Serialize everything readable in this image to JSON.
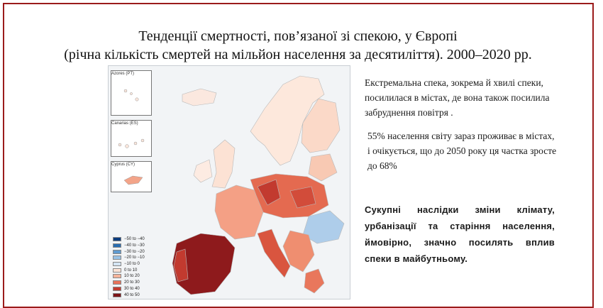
{
  "slide": {
    "title_line1": "Тенденції смертності, пов’язаної зі спекою, у Європі",
    "title_line2": "(річна кількість смертей на мільйон населення  за десятиліття). 2000–2020 рр.",
    "paragraph1": "Екстремальна спека, зокрема й хвилі спеки, посилилася в містах, де вона також посилила забруднення повітря .",
    "paragraph2": " 55% населення світу зараз проживає в містах, і очікується, що до 2050 року ця частка зросте до 68%",
    "paragraph3": "Сукупні наслідки зміни клімату, урбанізації та старіння населення, ймовірно, значно посилять вплив спеки в майбутньому."
  },
  "map": {
    "insets": [
      "Azores (PT)",
      "Canarias (ES)",
      "Cyprus (CY)"
    ],
    "legend": [
      {
        "label": "−50 to −40",
        "color": "#0b3c7d"
      },
      {
        "label": "−40 to −30",
        "color": "#2a6db0"
      },
      {
        "label": "−30 to −20",
        "color": "#5e9ad0"
      },
      {
        "label": "−20 to −10",
        "color": "#98c2e6"
      },
      {
        "label": "−10 to 0",
        "color": "#d4e5f4"
      },
      {
        "label": "0 to 10",
        "color": "#fde3d6"
      },
      {
        "label": "10 to 20",
        "color": "#f6b49a"
      },
      {
        "label": "20 to 30",
        "color": "#e8735a"
      },
      {
        "label": "30 to 40",
        "color": "#c23a2f"
      },
      {
        "label": "40 to 50",
        "color": "#7b1418"
      }
    ]
  }
}
